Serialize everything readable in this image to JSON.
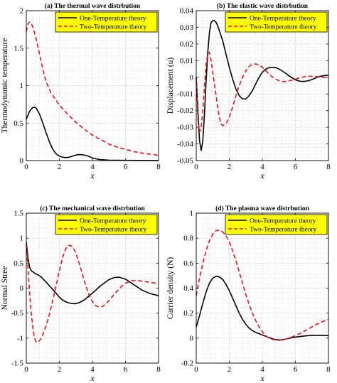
{
  "colors": {
    "one": "#000000",
    "two": "#e8141c",
    "legend_bg": "#ffff00",
    "grid": "#c8c8c8",
    "axis": "#000000"
  },
  "chart_data": [
    {
      "type": "line",
      "title": "(a) The thermal wave distrbution",
      "xlabel": "x",
      "ylabel": "Thermodynamic temperature",
      "xlim": [
        0,
        8
      ],
      "ylim": [
        0,
        2
      ],
      "xticks": [
        0,
        2,
        4,
        6,
        8
      ],
      "yticks": [
        0,
        0.5,
        1,
        1.5,
        2
      ],
      "ytick_labels": [
        "0",
        "0.5",
        "1",
        "1.5",
        "2"
      ],
      "grid": true,
      "legend_position": "top-right",
      "series": [
        {
          "name": "One-Temperature theory",
          "style": "solid",
          "color": "#000000",
          "x": [
            0,
            0.2,
            0.4,
            0.5,
            0.6,
            0.8,
            1.0,
            1.2,
            1.4,
            1.6,
            1.8,
            2.0,
            2.2,
            2.4,
            2.6,
            2.8,
            3.0,
            3.2,
            3.4,
            3.6,
            3.8,
            4.0,
            4.4,
            5.0,
            6.0,
            7.0,
            8.0
          ],
          "y": [
            0.55,
            0.66,
            0.71,
            0.71,
            0.7,
            0.62,
            0.5,
            0.37,
            0.25,
            0.15,
            0.09,
            0.06,
            0.045,
            0.04,
            0.045,
            0.06,
            0.075,
            0.08,
            0.078,
            0.07,
            0.055,
            0.035,
            0.015,
            0.005,
            0.003,
            0.002,
            0.001
          ]
        },
        {
          "name": "Two-Temperature theory",
          "style": "dashed",
          "color": "#e8141c",
          "x": [
            0,
            0.1,
            0.2,
            0.3,
            0.4,
            0.6,
            0.8,
            1.0,
            1.2,
            1.5,
            2.0,
            2.5,
            3.0,
            3.5,
            4.0,
            4.5,
            5.0,
            5.5,
            6.0,
            6.5,
            7.0,
            7.5,
            8.0
          ],
          "y": [
            1.72,
            1.82,
            1.85,
            1.83,
            1.78,
            1.62,
            1.42,
            1.22,
            1.05,
            0.9,
            0.74,
            0.62,
            0.51,
            0.42,
            0.34,
            0.28,
            0.22,
            0.18,
            0.15,
            0.12,
            0.1,
            0.085,
            0.07
          ]
        }
      ]
    },
    {
      "type": "line",
      "title": "(b) The elastic wave distrbution",
      "xlabel": "x",
      "ylabel": "Displacement  (u)",
      "xlim": [
        0,
        8
      ],
      "ylim": [
        -0.05,
        0.04
      ],
      "xticks": [
        0,
        2,
        4,
        6,
        8
      ],
      "yticks": [
        -0.05,
        -0.04,
        -0.03,
        -0.02,
        -0.01,
        0,
        0.01,
        0.02,
        0.03,
        0.04
      ],
      "ytick_labels": [
        "-0.05",
        "-0.04",
        "-0.03",
        "-0.02",
        "-0.01",
        "0",
        "0.01",
        "0.02",
        "0.03",
        "0.04"
      ],
      "grid": true,
      "legend_position": "top-right",
      "series": [
        {
          "name": "One-Temperature theory",
          "style": "solid",
          "color": "#000000",
          "x": [
            0,
            0.1,
            0.2,
            0.3,
            0.4,
            0.5,
            0.6,
            0.7,
            0.8,
            0.9,
            1.0,
            1.1,
            1.2,
            1.3,
            1.4,
            1.6,
            1.8,
            2.0,
            2.2,
            2.4,
            2.6,
            2.8,
            3.0,
            3.2,
            3.4,
            3.6,
            3.8,
            4.0,
            4.2,
            4.4,
            4.6,
            4.8,
            5.0,
            5.2,
            5.4,
            5.6,
            5.8,
            6.0,
            6.2,
            6.4,
            6.6,
            6.8,
            7.0,
            7.2,
            7.4,
            7.6,
            7.8,
            8.0
          ],
          "y": [
            0.0,
            -0.02,
            -0.038,
            -0.044,
            -0.038,
            -0.022,
            -0.002,
            0.015,
            0.027,
            0.033,
            0.034,
            0.034,
            0.033,
            0.031,
            0.028,
            0.022,
            0.014,
            0.006,
            -0.001,
            -0.007,
            -0.011,
            -0.013,
            -0.013,
            -0.011,
            -0.008,
            -0.004,
            0.0,
            0.003,
            0.0048,
            0.0058,
            0.006,
            0.0058,
            0.005,
            0.0038,
            0.0025,
            0.001,
            -0.0003,
            -0.0015,
            -0.0022,
            -0.0025,
            -0.0024,
            -0.002,
            -0.0013,
            -0.0005,
            0.0003,
            0.0008,
            0.0011,
            0.0012
          ]
        },
        {
          "name": "Two-Temperature theory",
          "style": "dashed",
          "color": "#e8141c",
          "x": [
            0,
            0.1,
            0.2,
            0.3,
            0.4,
            0.5,
            0.6,
            0.7,
            0.8,
            0.9,
            1.0,
            1.1,
            1.2,
            1.3,
            1.4,
            1.5,
            1.6,
            1.8,
            2.0,
            2.2,
            2.4,
            2.6,
            2.8,
            3.0,
            3.2,
            3.4,
            3.6,
            3.8,
            4.0,
            4.2,
            4.4,
            4.6,
            4.8,
            5.0,
            5.2,
            5.4,
            5.6,
            5.8,
            6.0,
            6.2,
            6.4,
            6.6,
            6.8,
            7.0,
            7.2,
            7.4,
            7.6,
            7.8,
            8.0
          ],
          "y": [
            0.0,
            -0.025,
            -0.033,
            -0.03,
            -0.02,
            -0.005,
            0.008,
            0.0145,
            0.015,
            0.01,
            0.003,
            -0.004,
            -0.011,
            -0.018,
            -0.024,
            -0.028,
            -0.029,
            -0.028,
            -0.024,
            -0.018,
            -0.011,
            -0.005,
            0.0,
            0.004,
            0.0065,
            0.008,
            0.008,
            0.0075,
            0.006,
            0.004,
            0.002,
            0.0003,
            -0.0011,
            -0.002,
            -0.0025,
            -0.0025,
            -0.0022,
            -0.0017,
            -0.0011,
            -0.0005,
            0.0,
            0.0004,
            0.0006,
            0.0006,
            0.0005,
            0.0003,
            0.0001,
            0.0,
            0.0
          ]
        }
      ]
    },
    {
      "type": "line",
      "title": "(c) The mechanical wave distrbution",
      "xlabel": "x",
      "ylabel": "Normal Stree",
      "xlim": [
        0,
        8
      ],
      "ylim": [
        -1.5,
        1.5
      ],
      "xticks": [
        0,
        2,
        4,
        6,
        8
      ],
      "yticks": [
        -1.5,
        -1,
        -0.5,
        0,
        0.5,
        1,
        1.5
      ],
      "ytick_labels": [
        "-1.5",
        "-1",
        "-0.5",
        "0",
        "0.5",
        "1",
        "1.5"
      ],
      "grid": true,
      "legend_position": "top-right",
      "series": [
        {
          "name": "One-Temperature theory",
          "style": "solid",
          "color": "#000000",
          "x": [
            0,
            0.1,
            0.2,
            0.3,
            0.5,
            0.8,
            1.0,
            1.2,
            1.5,
            1.8,
            2.0,
            2.2,
            2.5,
            2.8,
            3.0,
            3.2,
            3.5,
            4.0,
            4.5,
            5.0,
            5.3,
            5.6,
            6.0,
            6.5,
            7.0,
            7.5,
            8.0
          ],
          "y": [
            0.92,
            0.6,
            0.42,
            0.35,
            0.3,
            0.25,
            0.19,
            0.12,
            0.01,
            -0.1,
            -0.18,
            -0.24,
            -0.29,
            -0.31,
            -0.31,
            -0.29,
            -0.24,
            -0.1,
            0.05,
            0.17,
            0.21,
            0.22,
            0.18,
            0.07,
            -0.04,
            -0.11,
            -0.15
          ]
        },
        {
          "name": "Two-Temperature theory",
          "style": "dashed",
          "color": "#e8141c",
          "x": [
            0,
            0.1,
            0.2,
            0.3,
            0.4,
            0.5,
            0.6,
            0.7,
            0.8,
            0.9,
            1.0,
            1.2,
            1.4,
            1.6,
            1.8,
            2.0,
            2.2,
            2.4,
            2.6,
            2.8,
            3.0,
            3.2,
            3.4,
            3.6,
            3.8,
            4.0,
            4.2,
            4.4,
            4.6,
            4.8,
            5.0,
            5.4,
            5.8,
            6.0,
            6.4,
            6.8,
            7.0,
            7.2,
            7.4,
            7.6,
            7.8,
            8.0
          ],
          "y": [
            0.88,
            0.4,
            -0.1,
            -0.5,
            -0.8,
            -1.0,
            -1.08,
            -1.08,
            -1.05,
            -1.0,
            -0.93,
            -0.75,
            -0.52,
            -0.25,
            0.05,
            0.35,
            0.62,
            0.8,
            0.86,
            0.83,
            0.7,
            0.5,
            0.27,
            0.05,
            -0.14,
            -0.27,
            -0.35,
            -0.38,
            -0.37,
            -0.32,
            -0.25,
            -0.09,
            0.05,
            0.1,
            0.15,
            0.15,
            0.14,
            0.13,
            0.12,
            0.11,
            0.1,
            0.08
          ]
        }
      ]
    },
    {
      "type": "line",
      "title": "(d) The plasma wave distrbution",
      "xlabel": "x",
      "ylabel": "Carrier density  (N)",
      "xlim": [
        0,
        8
      ],
      "ylim": [
        -0.2,
        1
      ],
      "xticks": [
        0,
        2,
        4,
        6,
        8
      ],
      "yticks": [
        -0.2,
        0,
        0.2,
        0.4,
        0.6,
        0.8,
        1
      ],
      "ytick_labels": [
        "-0.2",
        "0",
        "0.2",
        "0.4",
        "0.6",
        "0.8",
        "1"
      ],
      "grid": true,
      "legend_position": "top-right",
      "series": [
        {
          "name": "One-Temperature theory",
          "style": "solid",
          "color": "#000000",
          "x": [
            0,
            0.2,
            0.4,
            0.6,
            0.8,
            1.0,
            1.2,
            1.4,
            1.6,
            1.8,
            2.0,
            2.2,
            2.4,
            2.6,
            2.8,
            3.0,
            3.2,
            3.4,
            3.6,
            3.8,
            4.0,
            4.2,
            4.4,
            4.6,
            4.8,
            5.0,
            5.2,
            5.4,
            5.6,
            5.8,
            6.0,
            6.4,
            6.8,
            7.2,
            7.6,
            8.0
          ],
          "y": [
            0.09,
            0.18,
            0.28,
            0.37,
            0.44,
            0.48,
            0.495,
            0.49,
            0.47,
            0.43,
            0.38,
            0.32,
            0.26,
            0.2,
            0.15,
            0.11,
            0.08,
            0.06,
            0.045,
            0.035,
            0.025,
            0.015,
            0.005,
            -0.005,
            -0.012,
            -0.015,
            -0.013,
            -0.008,
            -0.002,
            0.004,
            0.008,
            0.015,
            0.02,
            0.022,
            0.022,
            0.02
          ]
        },
        {
          "name": "Two-Temperature theory",
          "style": "dashed",
          "color": "#e8141c",
          "x": [
            0,
            0.2,
            0.4,
            0.6,
            0.8,
            1.0,
            1.2,
            1.4,
            1.6,
            1.8,
            2.0,
            2.2,
            2.4,
            2.6,
            2.8,
            3.0,
            3.2,
            3.4,
            3.6,
            3.8,
            4.0,
            4.2,
            4.4,
            4.6,
            4.8,
            5.0,
            5.2,
            5.4,
            5.6,
            5.8,
            6.0,
            6.4,
            6.8,
            7.2,
            7.6,
            8.0
          ],
          "y": [
            0.34,
            0.48,
            0.6,
            0.7,
            0.78,
            0.83,
            0.86,
            0.865,
            0.85,
            0.82,
            0.77,
            0.7,
            0.62,
            0.53,
            0.44,
            0.35,
            0.27,
            0.2,
            0.14,
            0.09,
            0.05,
            0.02,
            0.0,
            -0.01,
            -0.015,
            -0.018,
            -0.015,
            -0.008,
            0.0,
            0.01,
            0.02,
            0.045,
            0.075,
            0.105,
            0.13,
            0.15
          ]
        }
      ]
    }
  ]
}
